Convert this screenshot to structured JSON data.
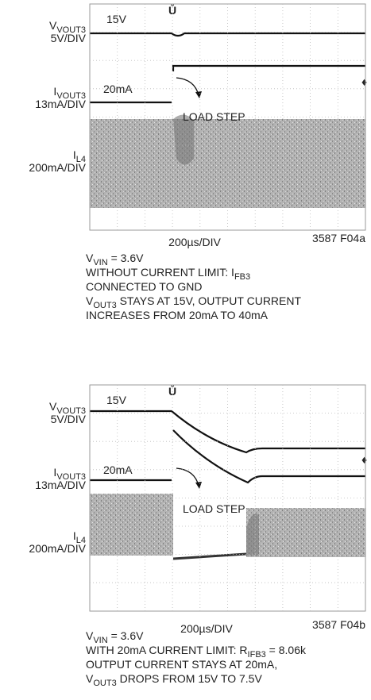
{
  "panels": [
    {
      "labels": [
        [
          [
            "V",
            {
              "sub": "VOUT3"
            }
          ],
          [
            "5V/DIV"
          ]
        ],
        [
          [
            "I",
            {
              "sub": "VOUT3"
            }
          ],
          [
            "13mA/DIV"
          ]
        ],
        [
          [
            "I",
            {
              "sub": "L4"
            }
          ],
          [
            "200mA/DIV"
          ]
        ]
      ],
      "voltage_note": "15V",
      "current_note": "20mA",
      "arrow_note": "LOAD STEP",
      "timebase": "200µs/DIV",
      "figure_id": "3587 F04a",
      "caption": [
        [
          "V",
          {
            "sub": "VIN"
          },
          " = 3.6V"
        ],
        [
          "WITHOUT CURRENT LIMIT: I",
          {
            "sub": "FB3"
          }
        ],
        [
          "CONNECTED TO GND"
        ],
        [
          "V",
          {
            "sub": "OUT3"
          },
          " STAYS AT 15V, OUTPUT CURRENT"
        ],
        [
          "INCREASES FROM 20mA TO 40mA"
        ]
      ]
    },
    {
      "labels": [
        [
          [
            "V",
            {
              "sub": "VOUT3"
            }
          ],
          [
            "5V/DIV"
          ]
        ],
        [
          [
            "I",
            {
              "sub": "VOUT3"
            }
          ],
          [
            "13mA/DIV"
          ]
        ],
        [
          [
            "I",
            {
              "sub": "L4"
            }
          ],
          [
            "200mA/DIV"
          ]
        ]
      ],
      "voltage_note": "15V",
      "current_note": "20mA",
      "arrow_note": "LOAD STEP",
      "timebase": "200µs/DIV",
      "figure_id": "3587 F04b",
      "caption": [
        [
          "V",
          {
            "sub": "VIN"
          },
          " = 3.6V"
        ],
        [
          "WITH 20mA CURRENT LIMIT: R",
          {
            "sub": "IFB3"
          },
          " = 8.06k"
        ],
        [
          "OUTPUT CURRENT STAYS AT 20mA,"
        ],
        [
          "V",
          {
            "sub": "OUT3"
          },
          " DROPS FROM 15V TO 7.5V"
        ]
      ]
    }
  ]
}
